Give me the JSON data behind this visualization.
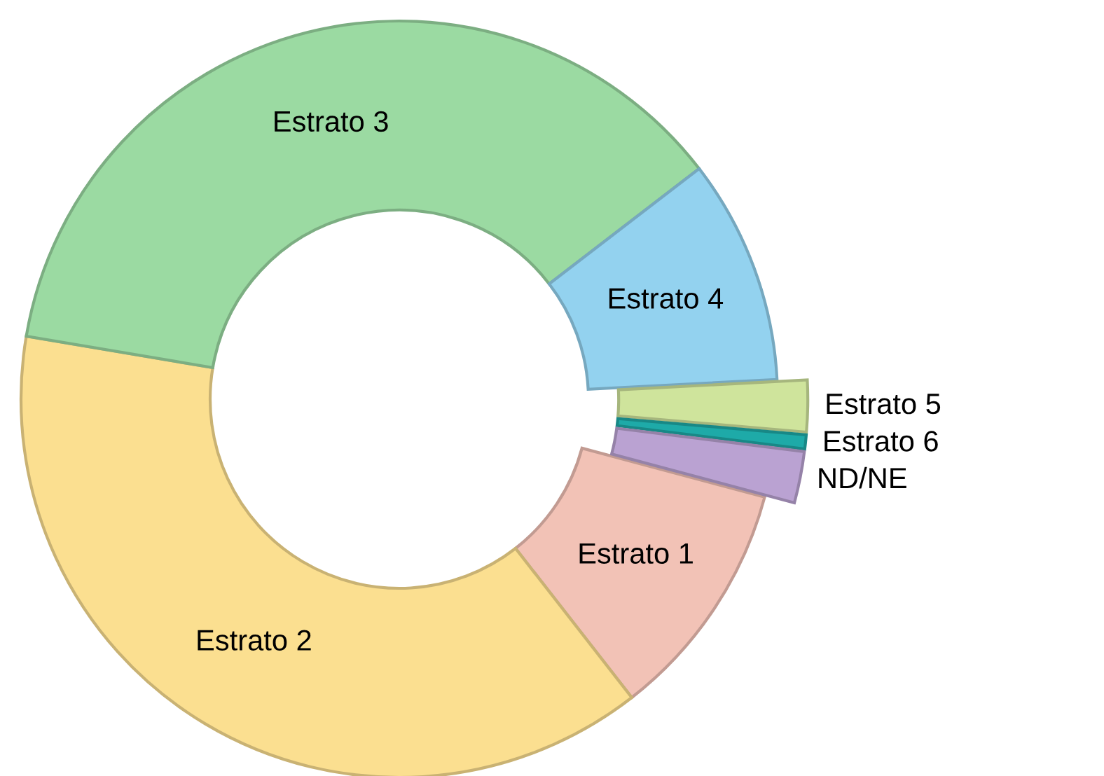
{
  "chart_data": {
    "type": "donut",
    "categories": [
      "Estrato 1",
      "Estrato 2",
      "Estrato 3",
      "Estrato 4",
      "Estrato 5",
      "Estrato 6",
      "ND/NE"
    ],
    "values": [
      10.3,
      38.2,
      36.9,
      9.6,
      2.2,
      0.6,
      2.2
    ],
    "colors": [
      "#f2c2b6",
      "#fbdf90",
      "#9bdaa2",
      "#93d2ef",
      "#cfe49c",
      "#1eaaa8",
      "#baa2d2"
    ]
  }
}
